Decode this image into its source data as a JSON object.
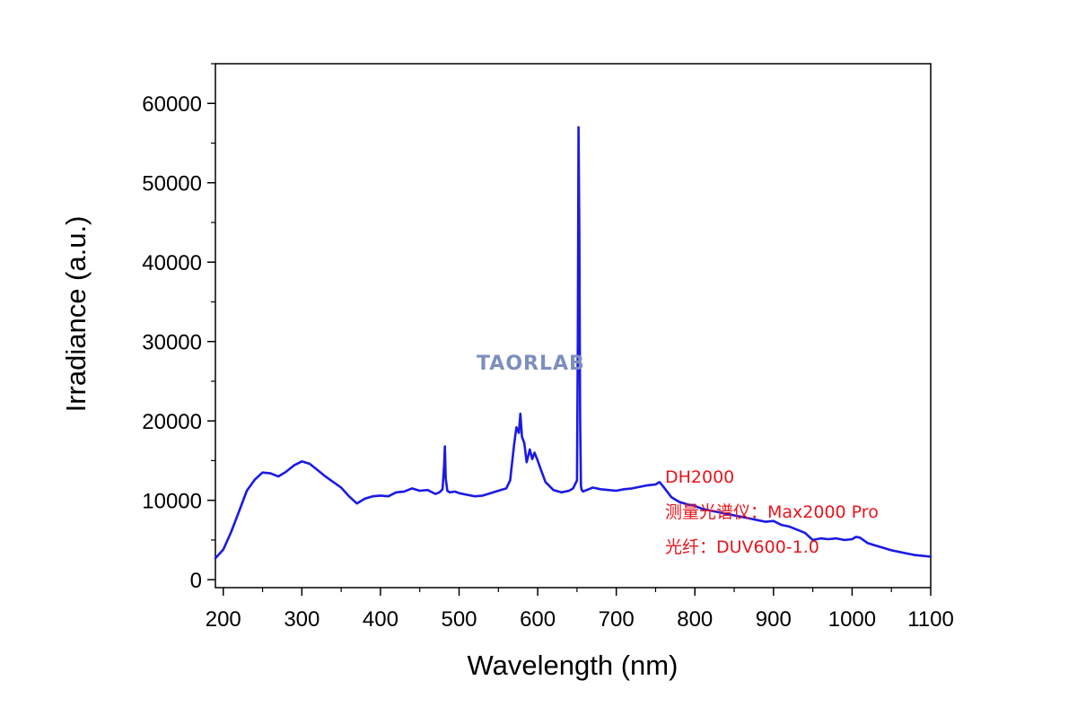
{
  "chart_data": {
    "type": "line",
    "title": "",
    "xlabel": "Wavelength (nm)",
    "ylabel": "Irradiance (a.u.)",
    "xlim": [
      190,
      1100
    ],
    "ylim": [
      -1000,
      65000
    ],
    "x_ticks": [
      200,
      300,
      400,
      500,
      600,
      700,
      800,
      900,
      1000,
      1100
    ],
    "y_ticks": [
      0,
      10000,
      20000,
      30000,
      40000,
      50000,
      60000
    ],
    "grid": false,
    "legend": "none",
    "line_color": "#1a1ae6",
    "annotations": [
      "DH2000",
      "测量光谱仪：Max2000 Pro",
      "光纤：DUV600-1.0"
    ],
    "annotation_color": "#e8141c",
    "watermark": "TAORLAB",
    "series": [
      {
        "x": [
          190,
          200,
          210,
          220,
          230,
          240,
          250,
          260,
          270,
          280,
          290,
          300,
          310,
          320,
          330,
          340,
          350,
          360,
          370,
          380,
          390,
          400,
          410,
          420,
          430,
          440,
          450,
          460,
          470,
          475,
          479,
          481,
          482,
          483,
          485,
          488,
          495,
          500,
          510,
          520,
          530,
          540,
          550,
          560,
          565,
          570,
          573,
          576,
          578,
          580,
          583,
          586,
          590,
          593,
          596,
          600,
          605,
          610,
          620,
          630,
          640,
          645,
          650,
          651,
          652,
          653,
          654,
          655,
          656,
          657,
          658,
          660,
          665,
          670,
          680,
          690,
          700,
          710,
          720,
          730,
          740,
          750,
          755,
          760,
          770,
          780,
          790,
          800,
          810,
          820,
          830,
          840,
          850,
          860,
          870,
          880,
          890,
          900,
          910,
          920,
          930,
          940,
          950,
          960,
          970,
          980,
          990,
          1000,
          1005,
          1010,
          1020,
          1030,
          1040,
          1050,
          1060,
          1070,
          1080,
          1090,
          1100
        ],
        "y": [
          2700,
          3800,
          6000,
          8600,
          11200,
          12600,
          13500,
          13400,
          13000,
          13600,
          14400,
          14900,
          14600,
          13800,
          13000,
          12300,
          11600,
          10500,
          9600,
          10200,
          10500,
          10600,
          10500,
          11000,
          11100,
          11500,
          11200,
          11300,
          10800,
          11000,
          11400,
          14500,
          16800,
          12800,
          11200,
          11000,
          11100,
          10900,
          10700,
          10500,
          10600,
          10900,
          11200,
          11500,
          12500,
          17000,
          19200,
          18500,
          20900,
          18000,
          17200,
          14800,
          16400,
          15200,
          16000,
          15000,
          13600,
          12300,
          11300,
          11000,
          11200,
          11500,
          12500,
          30000,
          57000,
          44000,
          20000,
          11800,
          11300,
          11200,
          11100,
          11200,
          11400,
          11600,
          11400,
          11300,
          11200,
          11400,
          11500,
          11700,
          11900,
          12000,
          12300,
          11700,
          10400,
          9800,
          9500,
          9300,
          8900,
          8700,
          8500,
          8300,
          8100,
          7900,
          7700,
          7500,
          7300,
          7400,
          6900,
          6700,
          6300,
          5900,
          5000,
          5200,
          5100,
          5200,
          5000,
          5100,
          5400,
          5300,
          4600,
          4300,
          4000,
          3700,
          3500,
          3300,
          3100,
          3000,
          2900
        ]
      }
    ]
  }
}
